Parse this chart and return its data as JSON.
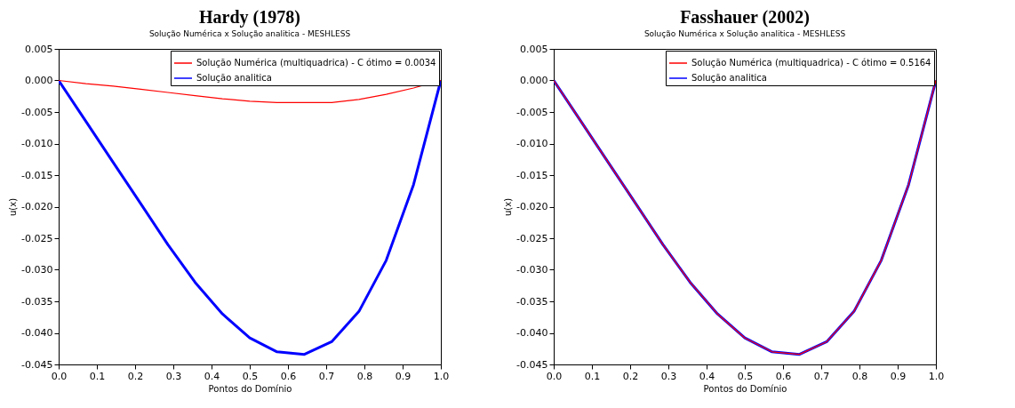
{
  "chart_data": [
    {
      "type": "line",
      "title": "Hardy (1978)",
      "subtitle": "Solução Numérica x Solução analitica - MESHLESS",
      "xlabel": "Pontos do Domínio",
      "ylabel": "u(x)",
      "x": [
        0,
        0.0714,
        0.1429,
        0.2143,
        0.2857,
        0.3571,
        0.4286,
        0.5,
        0.5714,
        0.6429,
        0.7143,
        0.7857,
        0.8571,
        0.9286,
        1.0
      ],
      "series": [
        {
          "name": "Solução Numérica (multiquadrica) - C ótimo = 0.0034",
          "color": "#ff0000",
          "values": [
            0,
            -0.0005,
            -0.0009,
            -0.0014,
            -0.0019,
            -0.0024,
            -0.0029,
            -0.0033,
            -0.0035,
            -0.0035,
            -0.0035,
            -0.003,
            -0.0022,
            -0.0012,
            0
          ]
        },
        {
          "name": "Solução analitica",
          "color": "#0000ff",
          "values": [
            0,
            -0.0065,
            -0.013,
            -0.0195,
            -0.026,
            -0.032,
            -0.037,
            -0.0408,
            -0.043,
            -0.0434,
            -0.0414,
            -0.0366,
            -0.0285,
            -0.0165,
            0
          ]
        }
      ],
      "xlim": [
        0,
        1
      ],
      "ylim": [
        -0.045,
        0.005
      ],
      "xticks": [
        {
          "value": 0,
          "label": "0.0"
        },
        {
          "value": 0.1,
          "label": "0.1"
        },
        {
          "value": 0.2,
          "label": "0.2"
        },
        {
          "value": 0.3,
          "label": "0.3"
        },
        {
          "value": 0.4,
          "label": "0.4"
        },
        {
          "value": 0.5,
          "label": "0.5"
        },
        {
          "value": 0.6,
          "label": "0.6"
        },
        {
          "value": 0.7,
          "label": "0.7"
        },
        {
          "value": 0.8,
          "label": "0.8"
        },
        {
          "value": 0.9,
          "label": "0.9"
        },
        {
          "value": 1,
          "label": "1.0"
        }
      ],
      "yticks": [
        {
          "value": 0.005,
          "label": "0.005"
        },
        {
          "value": 0,
          "label": "0.000"
        },
        {
          "value": -0.005,
          "label": "-0.005"
        },
        {
          "value": -0.01,
          "label": "-0.010"
        },
        {
          "value": -0.015,
          "label": "-0.015"
        },
        {
          "value": -0.02,
          "label": "-0.020"
        },
        {
          "value": -0.025,
          "label": "-0.025"
        },
        {
          "value": -0.03,
          "label": "-0.030"
        },
        {
          "value": -0.035,
          "label": "-0.035"
        },
        {
          "value": -0.04,
          "label": "-0.040"
        },
        {
          "value": -0.045,
          "label": "-0.045"
        }
      ],
      "legend": "top right",
      "grid": false
    },
    {
      "type": "line",
      "title": "Fasshauer (2002)",
      "subtitle": "Solução Numérica x Solução analitica - MESHLESS",
      "xlabel": "Pontos do Domínio",
      "ylabel": "u(x)",
      "x": [
        0,
        0.0714,
        0.1429,
        0.2143,
        0.2857,
        0.3571,
        0.4286,
        0.5,
        0.5714,
        0.6429,
        0.7143,
        0.7857,
        0.8571,
        0.9286,
        1.0
      ],
      "series": [
        {
          "name": "Solução Numérica (multiquadrica) - C ótimo = 0.5164",
          "color": "#ff0000",
          "values": [
            0,
            -0.0065,
            -0.013,
            -0.0195,
            -0.026,
            -0.032,
            -0.037,
            -0.0408,
            -0.043,
            -0.0434,
            -0.0414,
            -0.0366,
            -0.0285,
            -0.0165,
            0
          ]
        },
        {
          "name": "Solução analitica",
          "color": "#0000ff",
          "values": [
            0,
            -0.0065,
            -0.013,
            -0.0195,
            -0.026,
            -0.032,
            -0.037,
            -0.0408,
            -0.043,
            -0.0434,
            -0.0414,
            -0.0366,
            -0.0285,
            -0.0165,
            0
          ]
        }
      ],
      "xlim": [
        0,
        1
      ],
      "ylim": [
        -0.045,
        0.005
      ],
      "xticks": [
        {
          "value": 0,
          "label": "0.0"
        },
        {
          "value": 0.1,
          "label": "0.1"
        },
        {
          "value": 0.2,
          "label": "0.2"
        },
        {
          "value": 0.3,
          "label": "0.3"
        },
        {
          "value": 0.4,
          "label": "0.4"
        },
        {
          "value": 0.5,
          "label": "0.5"
        },
        {
          "value": 0.6,
          "label": "0.6"
        },
        {
          "value": 0.7,
          "label": "0.7"
        },
        {
          "value": 0.8,
          "label": "0.8"
        },
        {
          "value": 0.9,
          "label": "0.9"
        },
        {
          "value": 1,
          "label": "1.0"
        }
      ],
      "yticks": [
        {
          "value": 0.005,
          "label": "0.005"
        },
        {
          "value": 0,
          "label": "0.000"
        },
        {
          "value": -0.005,
          "label": "-0.005"
        },
        {
          "value": -0.01,
          "label": "-0.010"
        },
        {
          "value": -0.015,
          "label": "-0.015"
        },
        {
          "value": -0.02,
          "label": "-0.020"
        },
        {
          "value": -0.025,
          "label": "-0.025"
        },
        {
          "value": -0.03,
          "label": "-0.030"
        },
        {
          "value": -0.035,
          "label": "-0.035"
        },
        {
          "value": -0.04,
          "label": "-0.040"
        },
        {
          "value": -0.045,
          "label": "-0.045"
        }
      ],
      "legend": "top right",
      "grid": false
    }
  ]
}
